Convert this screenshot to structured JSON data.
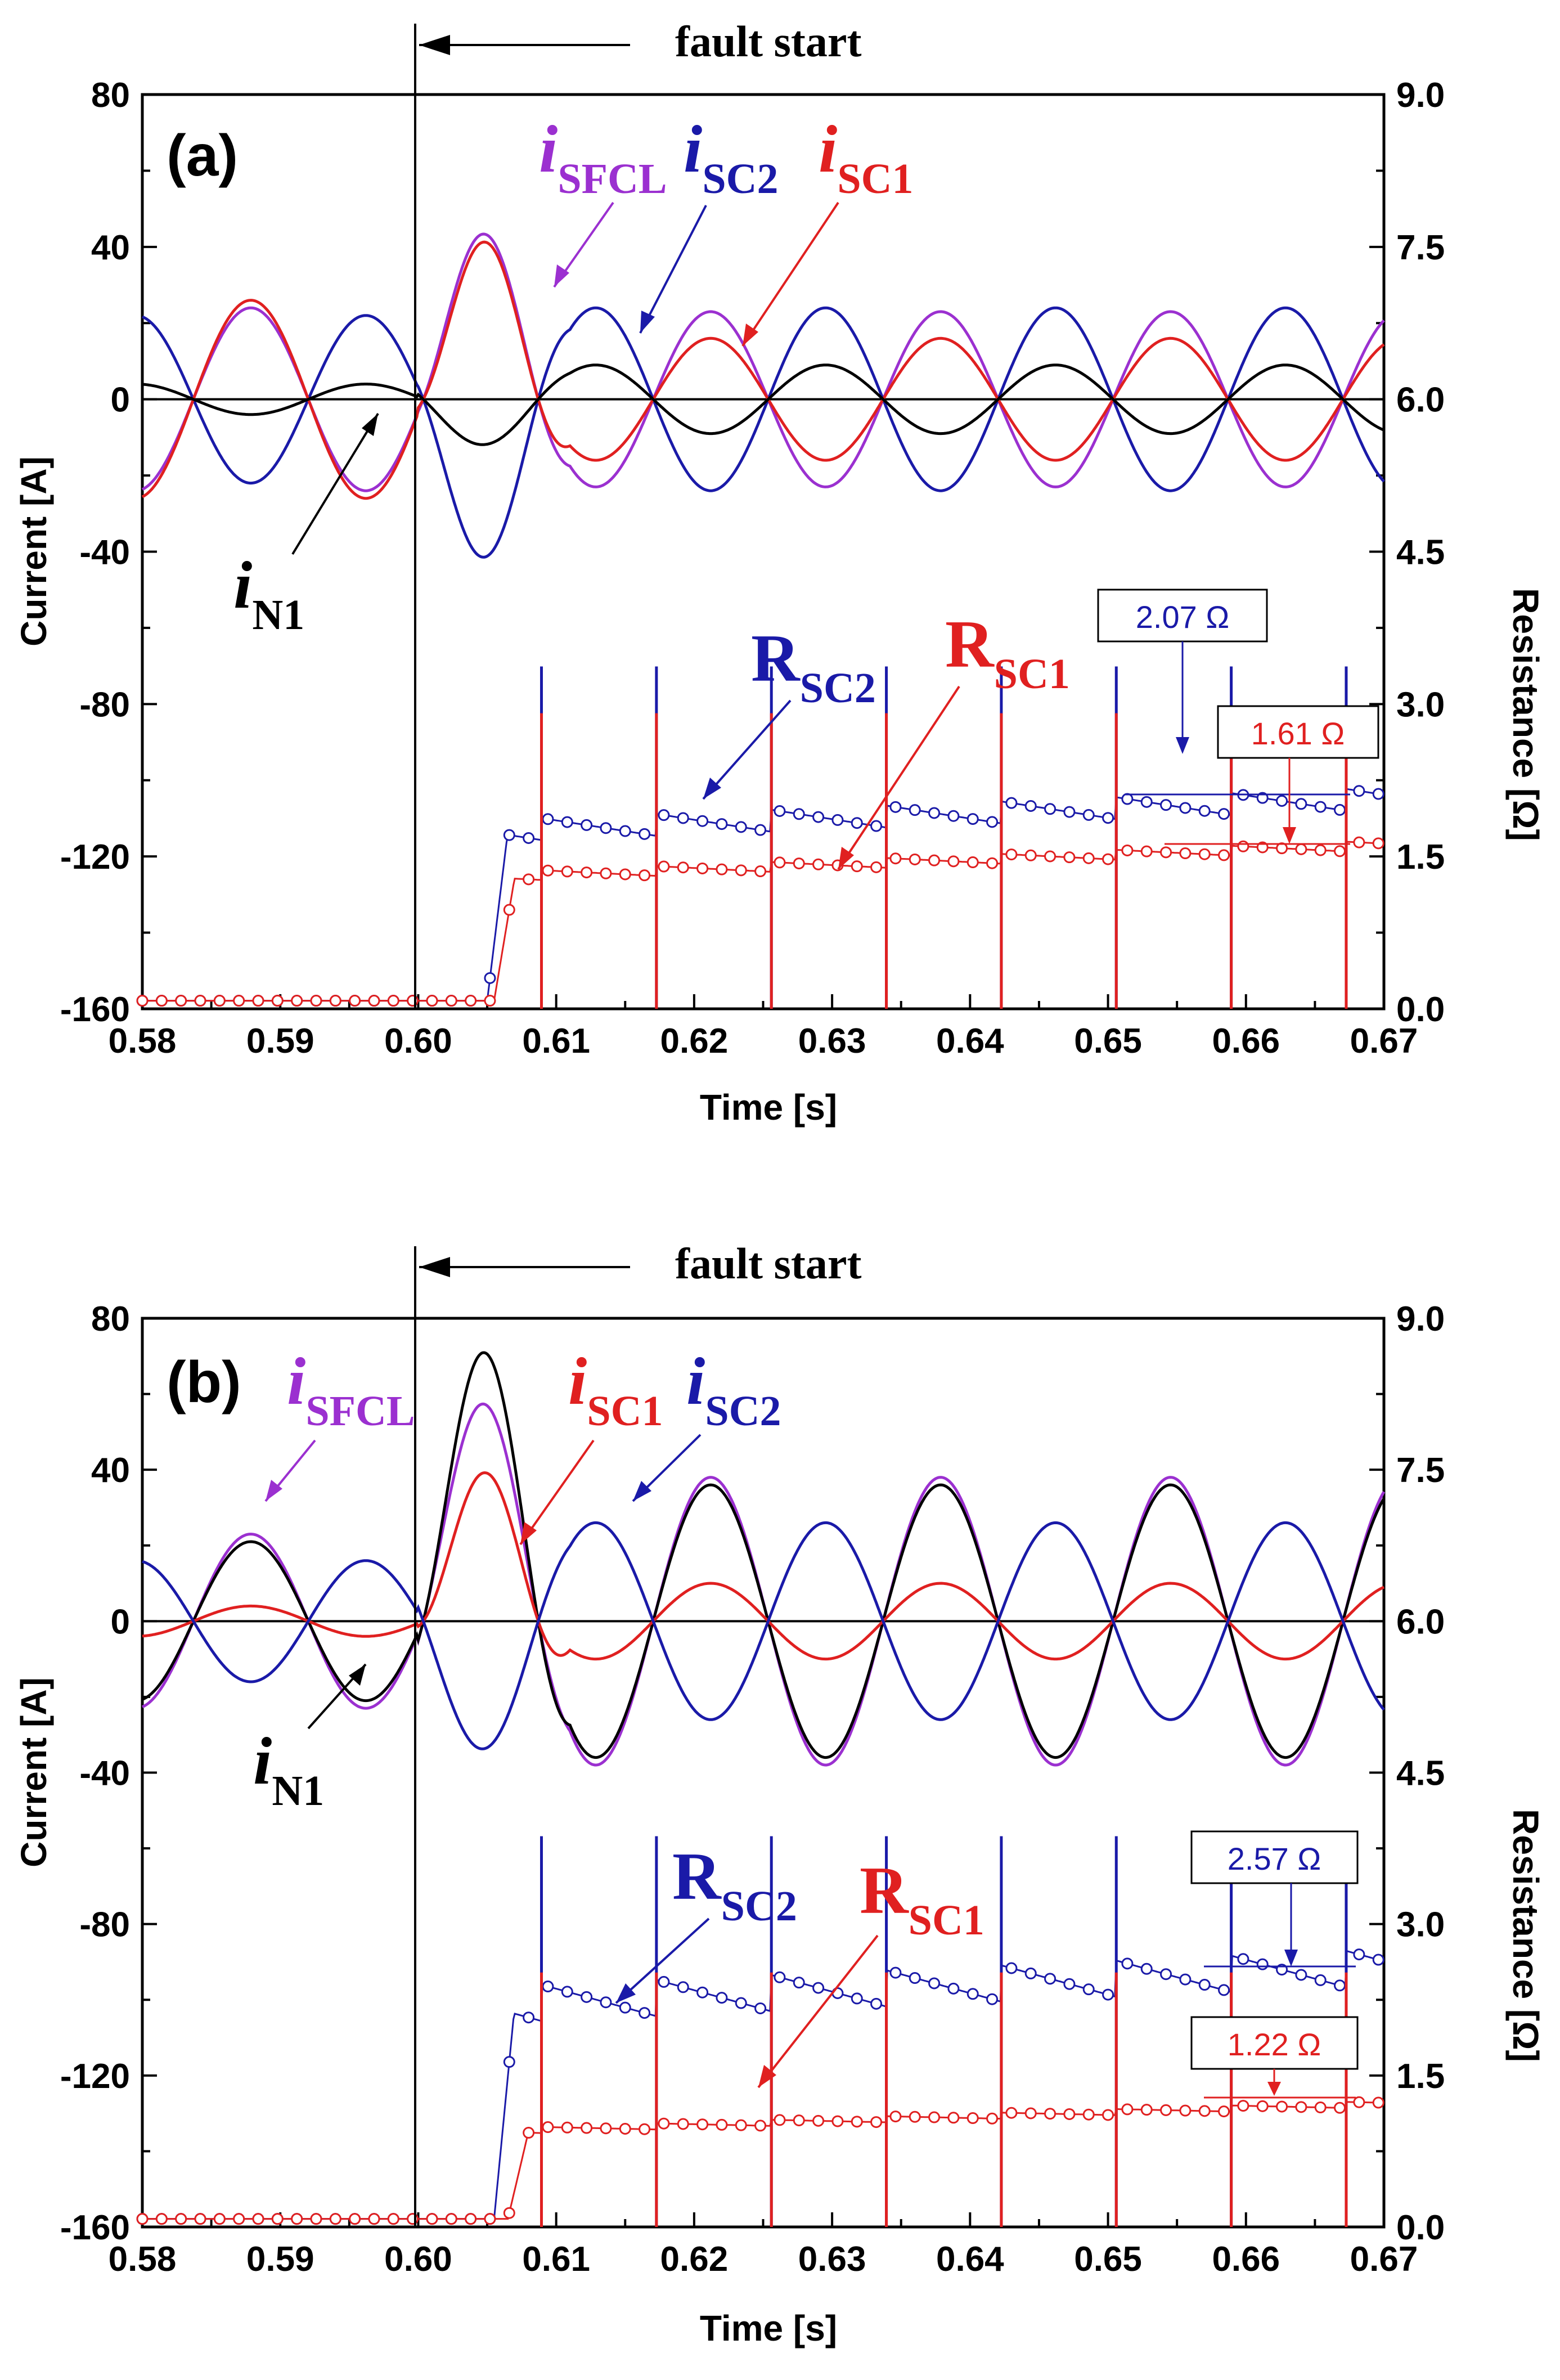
{
  "chart_data": [
    {
      "type": "line",
      "panel": "(a)",
      "fault_label": "fault start",
      "fault_time": 0.6,
      "xlabel": "Time [s]",
      "ylabel_left": "Current [A]",
      "ylabel_right": "Resistance [Ω]",
      "xlim": [
        0.58,
        0.67
      ],
      "ylim_left": [
        -160,
        80
      ],
      "ylim_right": [
        0.0,
        9.0
      ],
      "x_ticks": [
        "0.58",
        "0.59",
        "0.60",
        "0.61",
        "0.62",
        "0.63",
        "0.64",
        "0.65",
        "0.66",
        "0.67"
      ],
      "y_ticks_left": [
        "80",
        "40",
        "0",
        "-40",
        "-80",
        "-120",
        "-160"
      ],
      "y_ticks_right": [
        "9.0",
        "7.5",
        "6.0",
        "4.5",
        "3.0",
        "1.5",
        "0.0"
      ],
      "current_series": [
        {
          "name": "i_SFCL",
          "color": "#9b30d0",
          "pre_amp": 24,
          "post_amp": 23,
          "peak": 44,
          "sign": 1
        },
        {
          "name": "i_SC2",
          "color": "#1a1aa8",
          "pre_amp": 22,
          "post_amp": 24,
          "peak": -42,
          "sign": -1
        },
        {
          "name": "i_SC1",
          "color": "#e02020",
          "pre_amp": 26,
          "post_amp": 16,
          "peak": 42,
          "sign": 1
        },
        {
          "name": "i_N1",
          "color": "#000000",
          "pre_amp": 4,
          "post_amp": 9,
          "peak": -12,
          "sign": -1
        }
      ],
      "resistance_series": [
        {
          "name": "R_SC2",
          "color": "#1a1aa8",
          "quench_time": 0.605,
          "settle_value": 1.75,
          "end_value": 2.07,
          "drift": 0.18
        },
        {
          "name": "R_SC1",
          "color": "#e02020",
          "quench_time": 0.6055,
          "settle_value": 1.3,
          "end_value": 1.61,
          "drift": 0.08
        }
      ],
      "labels": {
        "i_sfcl_main": "i",
        "i_sfcl_sub": "SFCL",
        "i_sc2_main": "i",
        "i_sc2_sub": "SC2",
        "i_sc1_main": "i",
        "i_sc1_sub": "SC1",
        "i_n1_main": "i",
        "i_n1_sub": "N1",
        "r_sc2_main": "R",
        "r_sc2_sub": "SC2",
        "r_sc1_main": "R",
        "r_sc1_sub": "SC1"
      },
      "annotations": [
        {
          "text": "2.07 Ω",
          "color": "#1a1aa8",
          "value": 2.07
        },
        {
          "text": "1.61 Ω",
          "color": "#e02020",
          "value": 1.61
        }
      ]
    },
    {
      "type": "line",
      "panel": "(b)",
      "fault_label": "fault start",
      "fault_time": 0.6,
      "xlabel": "Time [s]",
      "ylabel_left": "Current [A]",
      "ylabel_right": "Resistance [Ω]",
      "xlim": [
        0.58,
        0.67
      ],
      "ylim_left": [
        -160,
        80
      ],
      "ylim_right": [
        0.0,
        9.0
      ],
      "x_ticks": [
        "0.58",
        "0.59",
        "0.60",
        "0.61",
        "0.62",
        "0.63",
        "0.64",
        "0.65",
        "0.66",
        "0.67"
      ],
      "y_ticks_left": [
        "80",
        "40",
        "0",
        "-40",
        "-80",
        "-120",
        "-160"
      ],
      "y_ticks_right": [
        "9.0",
        "7.5",
        "6.0",
        "4.5",
        "3.0",
        "1.5",
        "0.0"
      ],
      "current_series": [
        {
          "name": "i_SFCL",
          "color": "#9b30d0",
          "pre_amp": 23,
          "post_amp": 38,
          "peak": 58,
          "sign": 1
        },
        {
          "name": "i_N1",
          "color": "#000000",
          "pre_amp": 21,
          "post_amp": 36,
          "peak": 72,
          "sign": 1
        },
        {
          "name": "i_SC1",
          "color": "#e02020",
          "pre_amp": 4,
          "post_amp": 10,
          "peak": 40,
          "sign": 1
        },
        {
          "name": "i_SC2",
          "color": "#1a1aa8",
          "pre_amp": 16,
          "post_amp": 26,
          "peak": -34,
          "sign": -1
        }
      ],
      "resistance_series": [
        {
          "name": "R_SC2",
          "color": "#1a1aa8",
          "quench_time": 0.6055,
          "settle_value": 2.2,
          "end_value": 2.57,
          "drift": 0.3
        },
        {
          "name": "R_SC1",
          "color": "#e02020",
          "quench_time": 0.6065,
          "settle_value": 0.95,
          "end_value": 1.22,
          "drift": 0.05
        }
      ],
      "labels": {
        "i_sfcl_main": "i",
        "i_sfcl_sub": "SFCL",
        "i_sc1_main": "i",
        "i_sc1_sub": "SC1",
        "i_sc2_main": "i",
        "i_sc2_sub": "SC2",
        "i_n1_main": "i",
        "i_n1_sub": "N1",
        "r_sc2_main": "R",
        "r_sc2_sub": "SC2",
        "r_sc1_main": "R",
        "r_sc1_sub": "SC1"
      },
      "annotations": [
        {
          "text": "2.57 Ω",
          "color": "#1a1aa8",
          "value": 2.57
        },
        {
          "text": "1.22 Ω",
          "color": "#e02020",
          "value": 1.22
        }
      ]
    }
  ]
}
